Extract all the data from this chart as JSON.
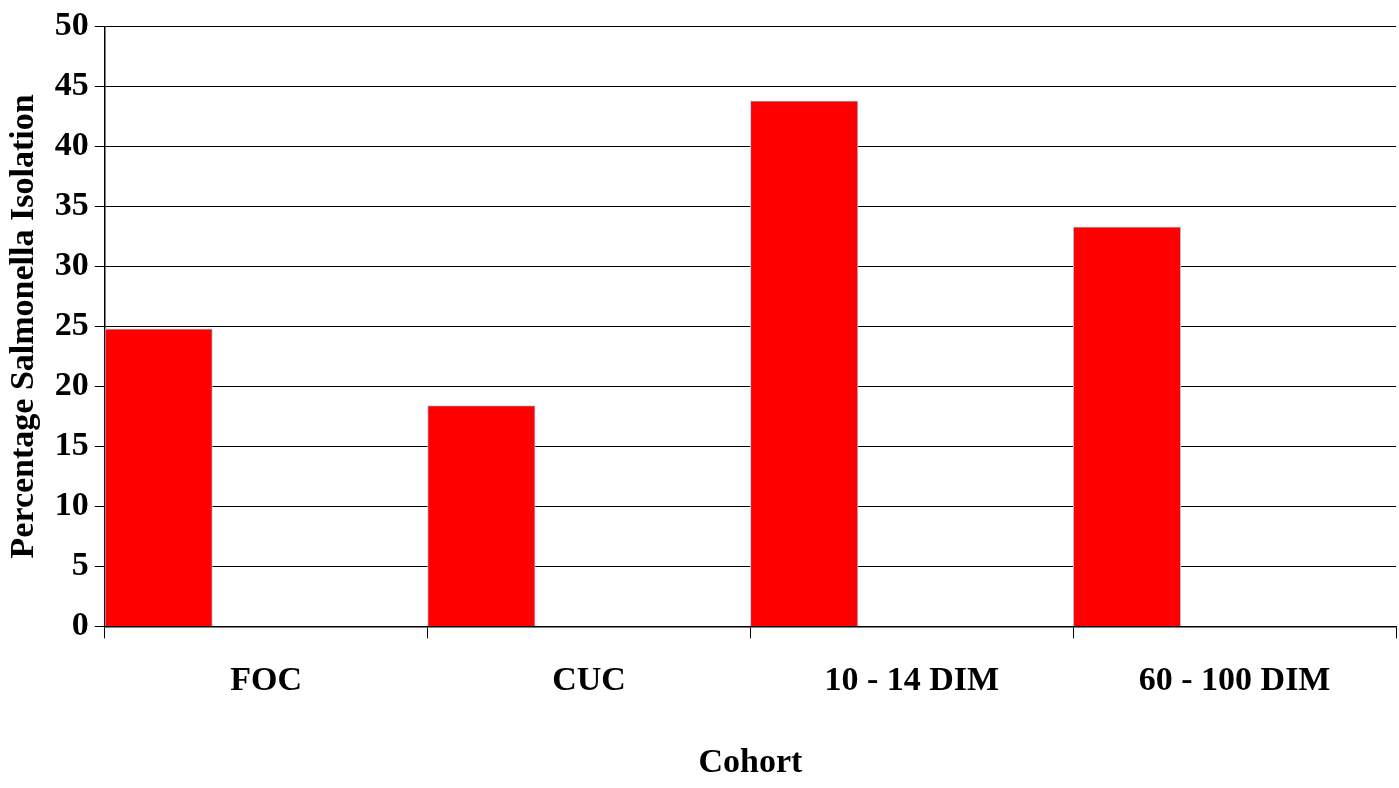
{
  "chart_data": {
    "type": "bar",
    "xlabel": "Cohort",
    "ylabel": "Percentage Salmonella Isolation",
    "categories": [
      "FOC",
      "CUC",
      "10 - 14 DIM",
      "60 - 100 DIM"
    ],
    "values": [
      24.8,
      18.4,
      43.8,
      33.3
    ],
    "color": "#ff0000",
    "ylim": [
      0,
      50
    ],
    "yticks": [
      0,
      5,
      10,
      15,
      20,
      25,
      30,
      35,
      40,
      45,
      50
    ],
    "grid": "y",
    "legend": false
  }
}
